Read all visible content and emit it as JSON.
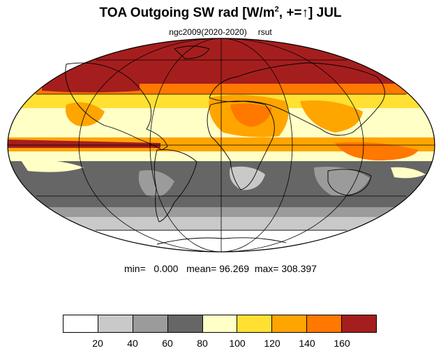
{
  "title": {
    "main": "TOA Outgoing SW rad [W/m",
    "sup": "2",
    "rest": ", +=↑] JUL"
  },
  "subtitle": {
    "case": "ngc2009(2020-2020)",
    "variable": "rsut"
  },
  "stats": {
    "min_label": "min=",
    "min": "0.000",
    "mean_label": "mean=",
    "mean": "96.269",
    "max_label": "max=",
    "max": "308.397"
  },
  "colorbar": {
    "colors": [
      "#ffffff",
      "#c9c9c9",
      "#9b9b9b",
      "#666666",
      "#ffffc6",
      "#ffe033",
      "#ffa500",
      "#ff7800",
      "#a51e1e"
    ],
    "ticks": [
      "20",
      "40",
      "60",
      "80",
      "100",
      "120",
      "140",
      "160"
    ]
  },
  "map": {
    "projection": "mollweide",
    "zonal_bands_colors": {
      "arctic": "#a51e1e",
      "north_midlat": "#ffe033",
      "subtropics": "#ffffc6",
      "itcz": "#ffa500",
      "south_tropics": "#ffffc6",
      "south_ocean": "#666666",
      "south_outer": "#9b9b9b",
      "antarctic_ring": "#c9c9c9",
      "antarctica": "#ffffff"
    },
    "coastline_color": "#000000"
  }
}
